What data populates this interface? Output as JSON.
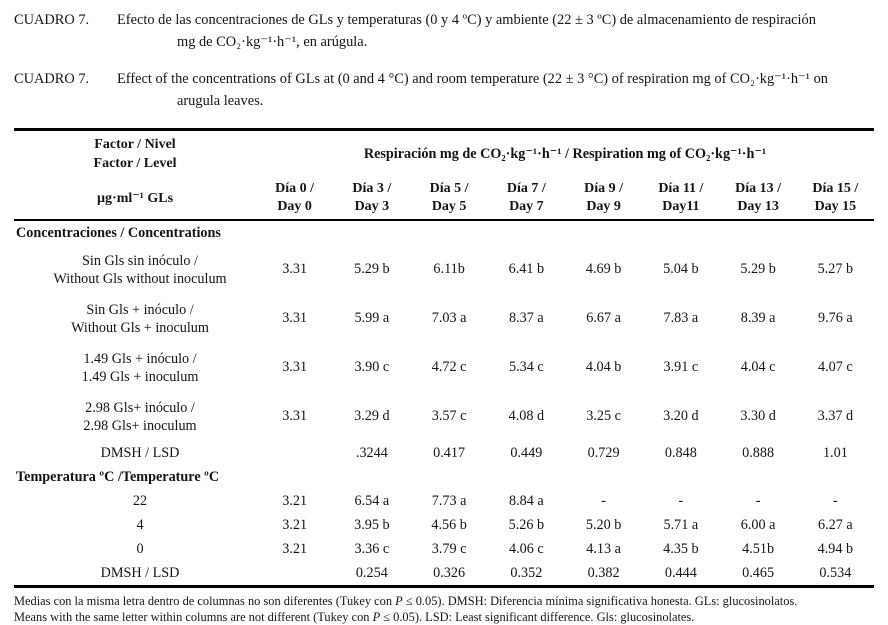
{
  "captions": [
    {
      "label": "CUADRO 7.",
      "line1": "Efecto de las concentraciones de GLs y temperaturas (0 y 4 ºC) y ambiente (22 ± 3 ºC) de almacenamiento de respiración",
      "line2": "mg de CO₂·kg⁻¹·h⁻¹, en arúgula."
    },
    {
      "label": "CUADRO 7.",
      "line1": "Effect of the concentrations of GLs at (0 and 4 °C) and room temperature (22 ± 3 °C) of respiration mg of CO₂·kg⁻¹·h⁻¹ on",
      "line2": "arugula leaves."
    }
  ],
  "header": {
    "factor_line1": "Factor / Nivel",
    "factor_line2": "Factor / Level",
    "unit": "µg·ml⁻¹ GLs",
    "span": "Respiración mg de CO₂·kg⁻¹·h⁻¹ / Respiration mg of CO₂·kg⁻¹·h⁻¹",
    "days": [
      {
        "l1": "Día 0 /",
        "l2": "Day 0"
      },
      {
        "l1": "Día 3 /",
        "l2": "Day 3"
      },
      {
        "l1": "Día 5 /",
        "l2": "Day 5"
      },
      {
        "l1": "Día 7 /",
        "l2": "Day 7"
      },
      {
        "l1": "Día 9 /",
        "l2": "Day 9"
      },
      {
        "l1": "Día 11 /",
        "l2": "Day11"
      },
      {
        "l1": "Día 13 /",
        "l2": "Day 13"
      },
      {
        "l1": "Día 15 /",
        "l2": "Day 15"
      }
    ]
  },
  "sections": [
    {
      "title": "Concentraciones / Concentrations",
      "rows": [
        {
          "label1": "Sin Gls sin inóculo /",
          "label2": "Without Gls without inoculum",
          "cells": [
            "3.31",
            "5.29 b",
            "6.11b",
            "6.41 b",
            "4.69 b",
            "5.04 b",
            "5.29 b",
            "5.27 b"
          ]
        },
        {
          "label1": "Sin Gls + inóculo /",
          "label2": "Without Gls + inoculum",
          "cells": [
            "3.31",
            "5.99 a",
            "7.03 a",
            "8.37 a",
            "6.67 a",
            "7.83 a",
            "8.39 a",
            "9.76 a"
          ]
        },
        {
          "label1": "1.49 Gls + inóculo /",
          "label2": "1.49 Gls + inoculum",
          "cells": [
            "3.31",
            "3.90 c",
            "4.72 c",
            "5.34 c",
            "4.04 b",
            "3.91 c",
            "4.04 c",
            "4.07 c"
          ]
        },
        {
          "label1": "2.98 Gls+ inóculo /",
          "label2": "2.98 Gls+ inoculum",
          "cells": [
            "3.31",
            "3.29 d",
            "3.57 c",
            "4.08 d",
            "3.25 c",
            "3.20 d",
            "3.30 d",
            "3.37 d"
          ]
        },
        {
          "label1": "DMSH / LSD",
          "label2": "",
          "cells": [
            "",
            ".3244",
            "0.417",
            "0.449",
            "0.729",
            "0.848",
            "0.888",
            "1.01"
          ]
        }
      ]
    },
    {
      "title": "Temperatura ºC /Temperature ºC",
      "rows": [
        {
          "label1": "22",
          "label2": "",
          "cells": [
            "3.21",
            "6.54 a",
            "7.73 a",
            "8.84 a",
            "-",
            "-",
            "-",
            "-"
          ]
        },
        {
          "label1": "4",
          "label2": "",
          "cells": [
            "3.21",
            "3.95 b",
            "4.56 b",
            "5.26 b",
            "5.20 b",
            "5.71 a",
            "6.00 a",
            "6.27 a"
          ]
        },
        {
          "label1": "0",
          "label2": "",
          "cells": [
            "3.21",
            "3.36 c",
            "3.79 c",
            "4.06 c",
            "4.13 a",
            "4.35 b",
            "4.51b",
            "4.94 b"
          ]
        },
        {
          "label1": "DMSH / LSD",
          "label2": "",
          "cells": [
            "",
            "0.254",
            "0.326",
            "0.352",
            "0.382",
            "0.444",
            "0.465",
            "0.534"
          ]
        }
      ]
    }
  ],
  "footnotes": [
    {
      "pre": "Medias con la misma letra dentro de columnas no son diferentes (Tukey con ",
      "p": "P",
      "post": " ≤ 0.05). DMSH: Diferencia mínima significativa honesta. GLs: glucosinolatos."
    },
    {
      "pre": "Means with the same letter within columns are not different (Tukey con ",
      "p": "P",
      "post": " ≤ 0.05). LSD: Least significant difference. Gls: glucosinolates."
    }
  ]
}
